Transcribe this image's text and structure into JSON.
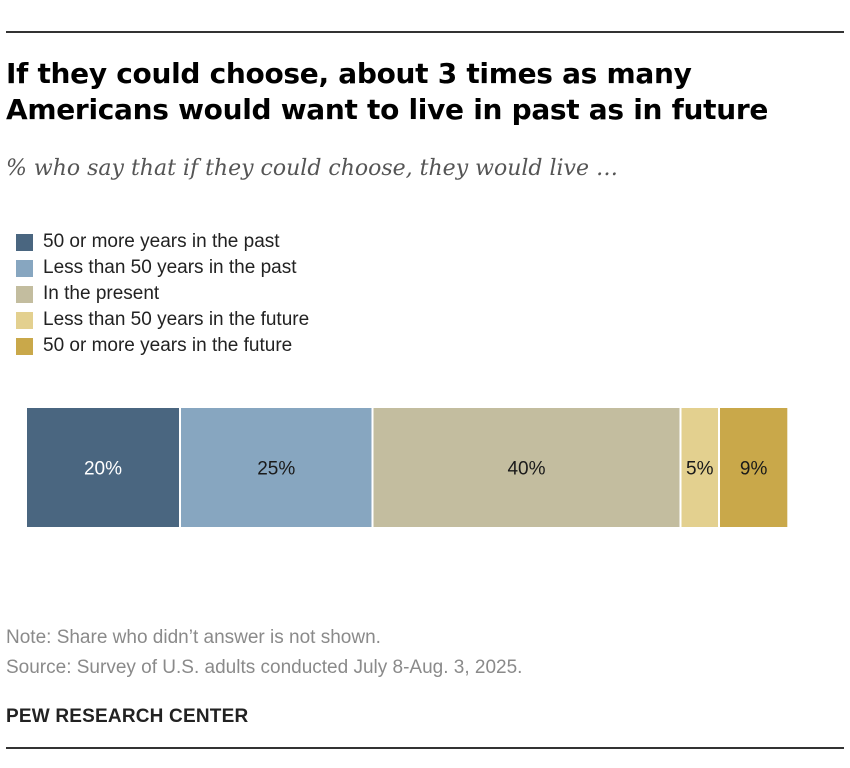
{
  "title": "If they could choose, about 3 times as many Americans would want to live in past as in future",
  "subtitle": "% who say that if they could choose, they would live …",
  "note": "Note: Share who didn’t answer is not shown.",
  "source": "Source: Survey of U.S. adults conducted July 8-Aug. 3, 2025.",
  "brand": "PEW RESEARCH CENTER",
  "chart_data": {
    "type": "bar",
    "orientation": "horizontal-stacked",
    "title": "If they could choose, about 3 times as many Americans would want to live in past as in future",
    "subtitle": "% who say that if they could choose, they would live …",
    "legend_position": "top-left",
    "grid": false,
    "xlim": [
      0,
      100
    ],
    "series": [
      {
        "name": "50 or more years in the past",
        "value": 20,
        "label": "20%",
        "color": "#4a6680",
        "label_color": "#ffffff"
      },
      {
        "name": "Less than 50 years in the past",
        "value": 25,
        "label": "25%",
        "color": "#87a6c0",
        "label_color": "#1a1a1a"
      },
      {
        "name": "In the present",
        "value": 40,
        "label": "40%",
        "color": "#c3bd9f",
        "label_color": "#1a1a1a"
      },
      {
        "name": "Less than 50 years in the future",
        "value": 5,
        "label": "5%",
        "color": "#e3d08f",
        "label_color": "#1a1a1a"
      },
      {
        "name": "50 or more years in the future",
        "value": 9,
        "label": "9%",
        "color": "#c9a84a",
        "label_color": "#1a1a1a"
      }
    ]
  }
}
